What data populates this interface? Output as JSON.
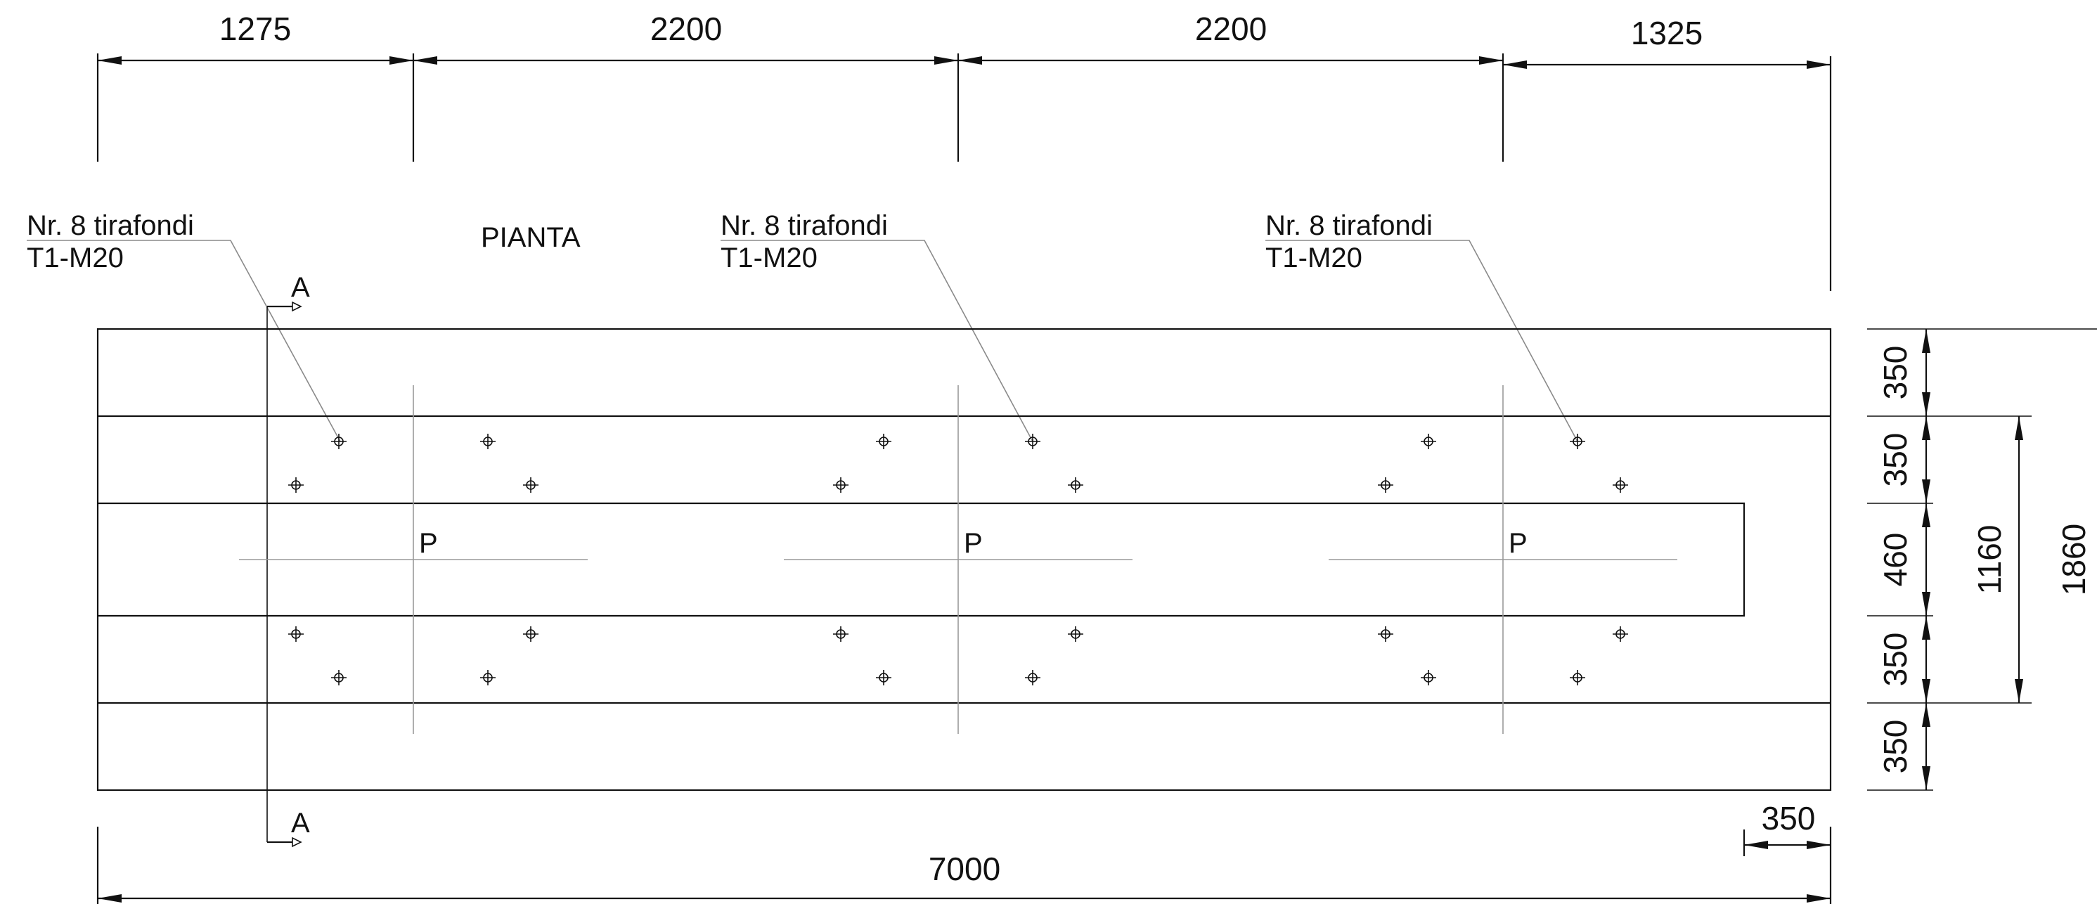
{
  "drawing": {
    "title": "PIANTA",
    "annotations": [
      {
        "line1": "Nr. 8 tirafondi",
        "line2": "T1-M20"
      },
      {
        "line1": "Nr. 8 tirafondi",
        "line2": "T1-M20"
      },
      {
        "line1": "Nr. 8 tirafondi",
        "line2": "T1-M20"
      }
    ],
    "section_mark": "A",
    "column_mark": "P",
    "dimensions": {
      "top": [
        "1275",
        "2200",
        "2200",
        "1325"
      ],
      "bottom_total": "7000",
      "bottom_offset": "350",
      "right_bands": [
        "350",
        "350",
        "460",
        "350",
        "350"
      ],
      "right_inner": "1160",
      "right_outer": "1860"
    },
    "colors": {
      "line": "#111111",
      "axis": "#9a9a9a",
      "leader": "#8a8a8a"
    }
  }
}
